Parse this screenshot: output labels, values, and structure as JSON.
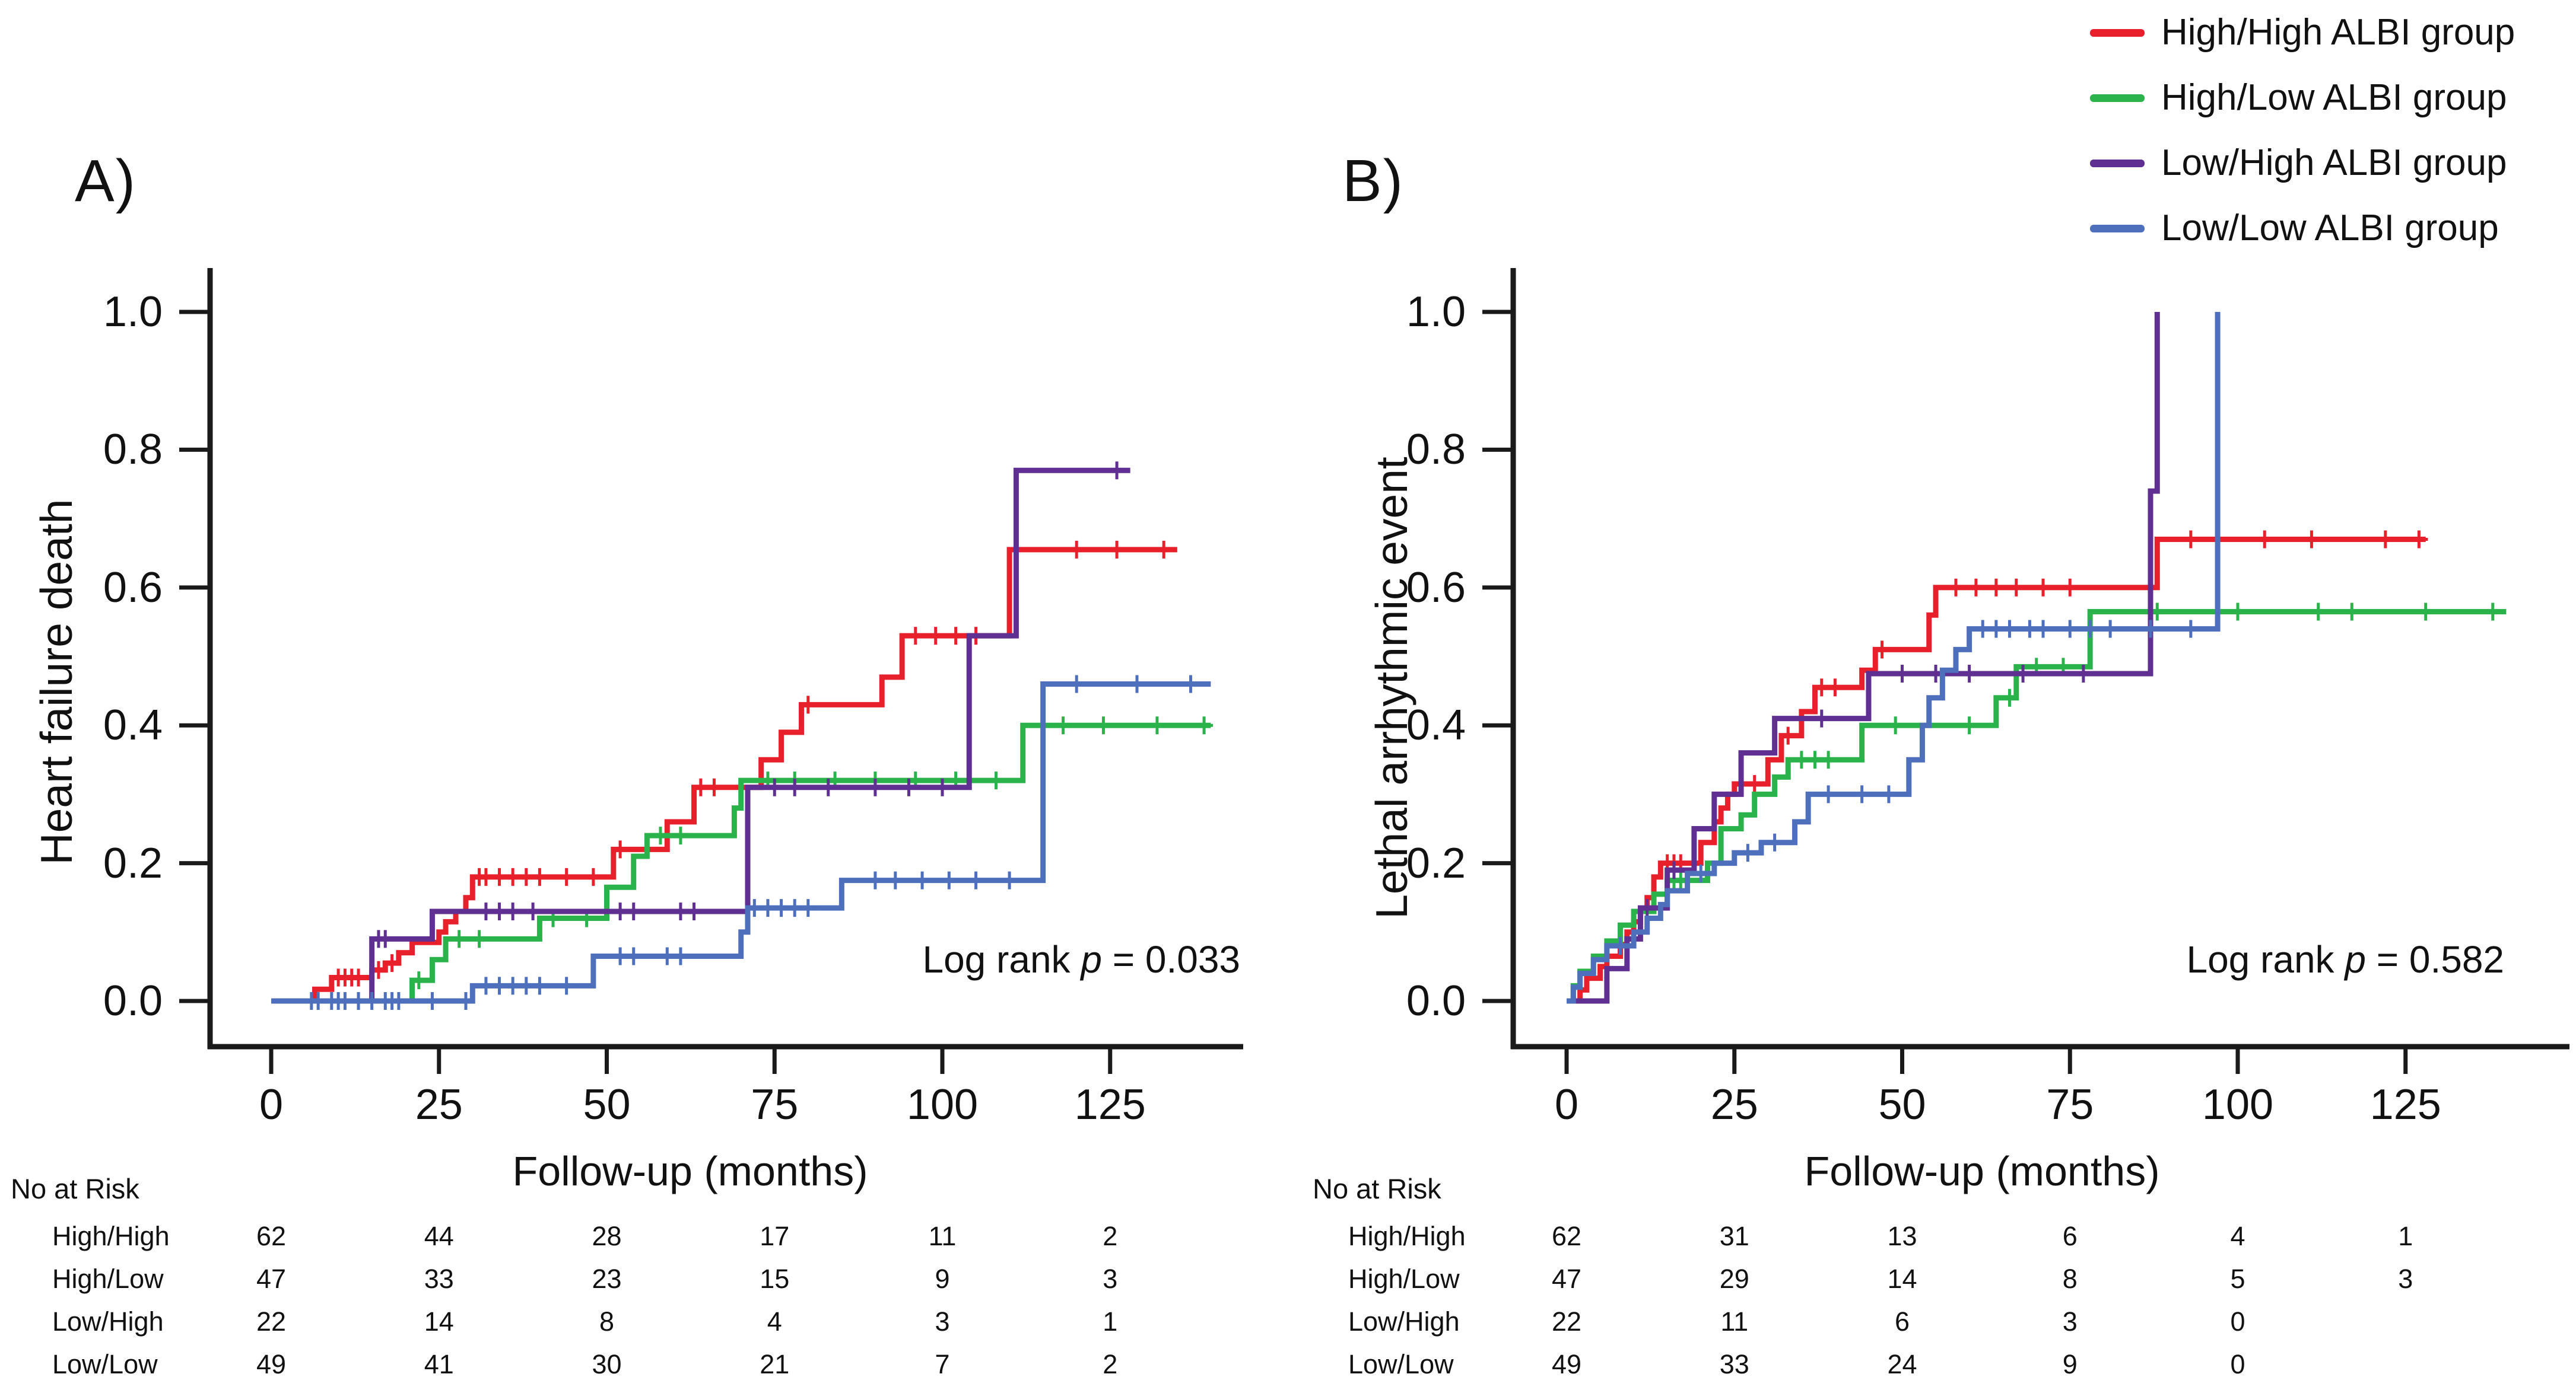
{
  "figure": {
    "background": "#ffffff",
    "legend": {
      "items": [
        {
          "label": "High/High ALBI group",
          "color": "#E8202B"
        },
        {
          "label": "High/Low ALBI group",
          "color": "#2BB34B"
        },
        {
          "label": "Low/High ALBI group",
          "color": "#5F2F91"
        },
        {
          "label": "Low/Low ALBI group",
          "color": "#4D6FBC"
        }
      ]
    }
  },
  "chart_data": [
    {
      "type": "line",
      "subtype": "kaplan-meier-cumulative-incidence",
      "panel_label": "A)",
      "title": "",
      "ylabel": "Heart failure death",
      "xlabel": "Follow-up (months)",
      "x_ticks": [
        0,
        25,
        50,
        75,
        100,
        125
      ],
      "y_ticks": [
        "0.0",
        "0.2",
        "0.4",
        "0.6",
        "0.8",
        "1.0"
      ],
      "xlim": [
        0,
        145
      ],
      "ylim": [
        0,
        1.05
      ],
      "grid": false,
      "legend_position": "figure-top-right",
      "annotation": {
        "prefix": "Log rank ",
        "italic": "p",
        "suffix": " = 0.033"
      },
      "series": [
        {
          "name": "High/High ALBI group",
          "color_ref": 0,
          "end": 135,
          "steps": [
            [
              0,
              0
            ],
            [
              6.5,
              0.017
            ],
            [
              9,
              0.034
            ],
            [
              15,
              0.045
            ],
            [
              17,
              0.055
            ],
            [
              19,
              0.07
            ],
            [
              21,
              0.085
            ],
            [
              25,
              0.1
            ],
            [
              26,
              0.115
            ],
            [
              27.5,
              0.13
            ],
            [
              29,
              0.15
            ],
            [
              30,
              0.18
            ],
            [
              51,
              0.22
            ],
            [
              59,
              0.26
            ],
            [
              63,
              0.31
            ],
            [
              73,
              0.35
            ],
            [
              76,
              0.39
            ],
            [
              79,
              0.43
            ],
            [
              91,
              0.47
            ],
            [
              94,
              0.53
            ],
            [
              110,
              0.655
            ]
          ],
          "censors": [
            10,
            11,
            12,
            13,
            16,
            18,
            31,
            32,
            34,
            36,
            38,
            40,
            44,
            48,
            52,
            64,
            66,
            80,
            96,
            99,
            102,
            105,
            120,
            126,
            133
          ]
        },
        {
          "name": "High/Low ALBI group",
          "color_ref": 1,
          "end": 140,
          "steps": [
            [
              0,
              0
            ],
            [
              21,
              0.03
            ],
            [
              24,
              0.06
            ],
            [
              26,
              0.09
            ],
            [
              40,
              0.12
            ],
            [
              50,
              0.165
            ],
            [
              54,
              0.21
            ],
            [
              56,
              0.24
            ],
            [
              69,
              0.28
            ],
            [
              70,
              0.32
            ],
            [
              112,
              0.4
            ]
          ],
          "censors": [
            22,
            28,
            31,
            42,
            47,
            58,
            61,
            74,
            78,
            84,
            90,
            96,
            102,
            108,
            118,
            124,
            132,
            139
          ]
        },
        {
          "name": "Low/High ALBI group",
          "color_ref": 2,
          "end": 128,
          "steps": [
            [
              0,
              0
            ],
            [
              15,
              0.09
            ],
            [
              24,
              0.13
            ],
            [
              71,
              0.31
            ],
            [
              104,
              0.53
            ],
            [
              111,
              0.77
            ]
          ],
          "censors": [
            13,
            16,
            17,
            32,
            34,
            36,
            39,
            52,
            54,
            61,
            63,
            75,
            78,
            83,
            90,
            95,
            100,
            126
          ]
        },
        {
          "name": "Low/Low ALBI group",
          "color_ref": 3,
          "end": 140,
          "steps": [
            [
              0,
              0
            ],
            [
              30,
              0.022
            ],
            [
              48,
              0.065
            ],
            [
              70,
              0.1
            ],
            [
              71,
              0.135
            ],
            [
              85,
              0.175
            ],
            [
              115,
              0.46
            ]
          ],
          "censors": [
            6,
            7,
            9,
            10,
            11,
            13,
            15,
            17,
            18,
            19,
            24,
            29,
            32,
            34,
            36,
            38,
            40,
            44,
            52,
            54,
            59,
            61,
            72,
            74,
            76,
            78,
            80,
            90,
            93,
            97,
            101,
            105,
            110,
            120,
            129,
            137
          ]
        }
      ],
      "risk_table": {
        "title": "No at Risk",
        "columns": [
          0,
          25,
          50,
          75,
          100,
          125
        ],
        "rows": [
          {
            "label": "High/High",
            "values": [
              62,
              44,
              28,
              17,
              11,
              2
            ]
          },
          {
            "label": "High/Low",
            "values": [
              47,
              33,
              23,
              15,
              9,
              3
            ]
          },
          {
            "label": "Low/High",
            "values": [
              22,
              14,
              8,
              4,
              3,
              1
            ]
          },
          {
            "label": "Low/Low",
            "values": [
              49,
              41,
              30,
              21,
              7,
              2
            ]
          }
        ]
      }
    },
    {
      "type": "line",
      "subtype": "kaplan-meier-cumulative-incidence",
      "panel_label": "B)",
      "title": "",
      "ylabel": "Lethal arrhythmic event",
      "xlabel": "Follow-up (months)",
      "x_ticks": [
        0,
        25,
        50,
        75,
        100,
        125
      ],
      "y_ticks": [
        "0.0",
        "0.2",
        "0.4",
        "0.6",
        "0.8",
        "1.0"
      ],
      "xlim": [
        0,
        150
      ],
      "ylim": [
        0,
        1.05
      ],
      "grid": false,
      "legend_position": "figure-top-right",
      "annotation": {
        "prefix": "Log rank ",
        "italic": "p",
        "suffix": " = 0.582"
      },
      "series": [
        {
          "name": "High/High ALBI group",
          "color_ref": 0,
          "end": 128,
          "steps": [
            [
              0,
              0
            ],
            [
              2,
              0.016
            ],
            [
              3,
              0.033
            ],
            [
              5,
              0.05
            ],
            [
              6,
              0.065
            ],
            [
              8,
              0.082
            ],
            [
              9,
              0.1
            ],
            [
              10,
              0.115
            ],
            [
              11,
              0.13
            ],
            [
              12,
              0.15
            ],
            [
              13,
              0.18
            ],
            [
              14,
              0.2
            ],
            [
              20,
              0.23
            ],
            [
              22,
              0.26
            ],
            [
              23,
              0.28
            ],
            [
              24,
              0.3
            ],
            [
              25,
              0.315
            ],
            [
              30,
              0.35
            ],
            [
              32,
              0.385
            ],
            [
              35,
              0.42
            ],
            [
              37,
              0.455
            ],
            [
              44,
              0.48
            ],
            [
              46,
              0.51
            ],
            [
              54,
              0.56
            ],
            [
              55,
              0.6
            ],
            [
              88,
              0.67
            ]
          ],
          "censors": [
            15,
            16,
            17,
            19,
            26,
            28,
            33,
            38,
            40,
            47,
            58,
            61,
            64,
            67,
            71,
            75,
            93,
            104,
            111,
            122,
            127
          ]
        },
        {
          "name": "High/Low ALBI group",
          "color_ref": 1,
          "end": 140,
          "steps": [
            [
              0,
              0
            ],
            [
              1,
              0.022
            ],
            [
              2,
              0.043
            ],
            [
              4,
              0.065
            ],
            [
              6,
              0.087
            ],
            [
              8,
              0.11
            ],
            [
              10,
              0.13
            ],
            [
              13,
              0.155
            ],
            [
              15,
              0.175
            ],
            [
              21,
              0.2
            ],
            [
              23,
              0.25
            ],
            [
              26,
              0.27
            ],
            [
              28,
              0.3
            ],
            [
              31,
              0.325
            ],
            [
              33,
              0.35
            ],
            [
              44,
              0.4
            ],
            [
              64,
              0.44
            ],
            [
              67,
              0.485
            ],
            [
              78,
              0.565
            ]
          ],
          "censors": [
            16,
            17,
            35,
            37,
            39,
            49,
            60,
            66,
            70,
            74,
            88,
            100,
            112,
            117,
            128,
            138
          ]
        },
        {
          "name": "Low/High ALBI group",
          "color_ref": 2,
          "end": 88,
          "steps": [
            [
              0,
              0
            ],
            [
              6,
              0.047
            ],
            [
              9,
              0.09
            ],
            [
              11,
              0.135
            ],
            [
              15,
              0.19
            ],
            [
              19,
              0.25
            ],
            [
              22,
              0.3
            ],
            [
              26,
              0.36
            ],
            [
              31,
              0.41
            ],
            [
              45,
              0.475
            ],
            [
              87,
              0.74
            ],
            [
              88,
              1.0
            ]
          ],
          "censors": [
            12,
            16,
            38,
            50,
            55,
            60,
            68,
            77
          ]
        },
        {
          "name": "Low/Low ALBI group",
          "color_ref": 3,
          "end": 97,
          "steps": [
            [
              0,
              0
            ],
            [
              1,
              0.02
            ],
            [
              2,
              0.04
            ],
            [
              4,
              0.06
            ],
            [
              6,
              0.08
            ],
            [
              10,
              0.1
            ],
            [
              12,
              0.12
            ],
            [
              14,
              0.14
            ],
            [
              15,
              0.16
            ],
            [
              18,
              0.185
            ],
            [
              22,
              0.2
            ],
            [
              25,
              0.215
            ],
            [
              29,
              0.23
            ],
            [
              34,
              0.26
            ],
            [
              36,
              0.3
            ],
            [
              51,
              0.35
            ],
            [
              53,
              0.4
            ],
            [
              54,
              0.44
            ],
            [
              56,
              0.48
            ],
            [
              58,
              0.51
            ],
            [
              60,
              0.54
            ],
            [
              97,
              1.0
            ]
          ],
          "censors": [
            8,
            20,
            27,
            31,
            39,
            44,
            48,
            62,
            64,
            66,
            69,
            71,
            75,
            78,
            81,
            87,
            93
          ]
        }
      ],
      "risk_table": {
        "title": "No at Risk",
        "columns": [
          0,
          25,
          50,
          75,
          100,
          125
        ],
        "rows": [
          {
            "label": "High/High",
            "values": [
              62,
              31,
              13,
              6,
              4,
              1
            ]
          },
          {
            "label": "High/Low",
            "values": [
              47,
              29,
              14,
              8,
              5,
              3
            ]
          },
          {
            "label": "Low/High",
            "values": [
              22,
              11,
              6,
              3,
              0
            ]
          },
          {
            "label": "Low/Low",
            "values": [
              49,
              33,
              24,
              9,
              0
            ]
          }
        ]
      }
    }
  ]
}
